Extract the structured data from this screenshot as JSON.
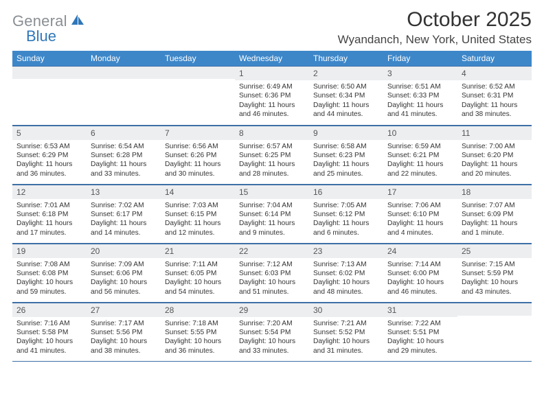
{
  "logo": {
    "gray": "General",
    "blue": "Blue",
    "icon_color": "#2f77b9"
  },
  "title": "October 2025",
  "location": "Wyandanch, New York, United States",
  "colors": {
    "header_bg": "#3d87c9",
    "daynum_bg": "#eceef0",
    "rule": "#3d6fa5"
  },
  "days_of_week": [
    "Sunday",
    "Monday",
    "Tuesday",
    "Wednesday",
    "Thursday",
    "Friday",
    "Saturday"
  ],
  "weeks": [
    [
      null,
      null,
      null,
      {
        "n": "1",
        "sr": "6:49 AM",
        "ss": "6:36 PM",
        "dl": "11 hours and 46 minutes."
      },
      {
        "n": "2",
        "sr": "6:50 AM",
        "ss": "6:34 PM",
        "dl": "11 hours and 44 minutes."
      },
      {
        "n": "3",
        "sr": "6:51 AM",
        "ss": "6:33 PM",
        "dl": "11 hours and 41 minutes."
      },
      {
        "n": "4",
        "sr": "6:52 AM",
        "ss": "6:31 PM",
        "dl": "11 hours and 38 minutes."
      }
    ],
    [
      {
        "n": "5",
        "sr": "6:53 AM",
        "ss": "6:29 PM",
        "dl": "11 hours and 36 minutes."
      },
      {
        "n": "6",
        "sr": "6:54 AM",
        "ss": "6:28 PM",
        "dl": "11 hours and 33 minutes."
      },
      {
        "n": "7",
        "sr": "6:56 AM",
        "ss": "6:26 PM",
        "dl": "11 hours and 30 minutes."
      },
      {
        "n": "8",
        "sr": "6:57 AM",
        "ss": "6:25 PM",
        "dl": "11 hours and 28 minutes."
      },
      {
        "n": "9",
        "sr": "6:58 AM",
        "ss": "6:23 PM",
        "dl": "11 hours and 25 minutes."
      },
      {
        "n": "10",
        "sr": "6:59 AM",
        "ss": "6:21 PM",
        "dl": "11 hours and 22 minutes."
      },
      {
        "n": "11",
        "sr": "7:00 AM",
        "ss": "6:20 PM",
        "dl": "11 hours and 20 minutes."
      }
    ],
    [
      {
        "n": "12",
        "sr": "7:01 AM",
        "ss": "6:18 PM",
        "dl": "11 hours and 17 minutes."
      },
      {
        "n": "13",
        "sr": "7:02 AM",
        "ss": "6:17 PM",
        "dl": "11 hours and 14 minutes."
      },
      {
        "n": "14",
        "sr": "7:03 AM",
        "ss": "6:15 PM",
        "dl": "11 hours and 12 minutes."
      },
      {
        "n": "15",
        "sr": "7:04 AM",
        "ss": "6:14 PM",
        "dl": "11 hours and 9 minutes."
      },
      {
        "n": "16",
        "sr": "7:05 AM",
        "ss": "6:12 PM",
        "dl": "11 hours and 6 minutes."
      },
      {
        "n": "17",
        "sr": "7:06 AM",
        "ss": "6:10 PM",
        "dl": "11 hours and 4 minutes."
      },
      {
        "n": "18",
        "sr": "7:07 AM",
        "ss": "6:09 PM",
        "dl": "11 hours and 1 minute."
      }
    ],
    [
      {
        "n": "19",
        "sr": "7:08 AM",
        "ss": "6:08 PM",
        "dl": "10 hours and 59 minutes."
      },
      {
        "n": "20",
        "sr": "7:09 AM",
        "ss": "6:06 PM",
        "dl": "10 hours and 56 minutes."
      },
      {
        "n": "21",
        "sr": "7:11 AM",
        "ss": "6:05 PM",
        "dl": "10 hours and 54 minutes."
      },
      {
        "n": "22",
        "sr": "7:12 AM",
        "ss": "6:03 PM",
        "dl": "10 hours and 51 minutes."
      },
      {
        "n": "23",
        "sr": "7:13 AM",
        "ss": "6:02 PM",
        "dl": "10 hours and 48 minutes."
      },
      {
        "n": "24",
        "sr": "7:14 AM",
        "ss": "6:00 PM",
        "dl": "10 hours and 46 minutes."
      },
      {
        "n": "25",
        "sr": "7:15 AM",
        "ss": "5:59 PM",
        "dl": "10 hours and 43 minutes."
      }
    ],
    [
      {
        "n": "26",
        "sr": "7:16 AM",
        "ss": "5:58 PM",
        "dl": "10 hours and 41 minutes."
      },
      {
        "n": "27",
        "sr": "7:17 AM",
        "ss": "5:56 PM",
        "dl": "10 hours and 38 minutes."
      },
      {
        "n": "28",
        "sr": "7:18 AM",
        "ss": "5:55 PM",
        "dl": "10 hours and 36 minutes."
      },
      {
        "n": "29",
        "sr": "7:20 AM",
        "ss": "5:54 PM",
        "dl": "10 hours and 33 minutes."
      },
      {
        "n": "30",
        "sr": "7:21 AM",
        "ss": "5:52 PM",
        "dl": "10 hours and 31 minutes."
      },
      {
        "n": "31",
        "sr": "7:22 AM",
        "ss": "5:51 PM",
        "dl": "10 hours and 29 minutes."
      },
      null
    ]
  ],
  "labels": {
    "sunrise": "Sunrise:",
    "sunset": "Sunset:",
    "daylight": "Daylight:"
  }
}
